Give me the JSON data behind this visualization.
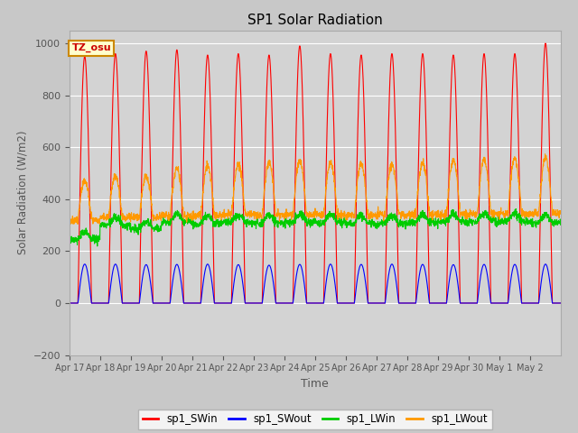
{
  "title": "SP1 Solar Radiation",
  "xlabel": "Time",
  "ylabel": "Solar Radiation (W/m2)",
  "ylim": [
    -200,
    1050
  ],
  "yticks": [
    -200,
    0,
    200,
    400,
    600,
    800,
    1000
  ],
  "fig_bg_color": "#c8c8c8",
  "plot_bg_color": "#d3d3d3",
  "grid_color": "#ffffff",
  "tz_label": "TZ_osu",
  "legend": [
    "sp1_SWin",
    "sp1_SWout",
    "sp1_LWin",
    "sp1_LWout"
  ],
  "colors": {
    "sp1_SWin": "#ff0000",
    "sp1_SWout": "#0000ff",
    "sp1_LWin": "#00cc00",
    "sp1_LWout": "#ff9900"
  },
  "n_days": 16,
  "start_day": 17,
  "sw_peaks": [
    950,
    960,
    970,
    975,
    955,
    960,
    955,
    990,
    960,
    955,
    960,
    960,
    955,
    960,
    960,
    1000
  ],
  "swout_peaks": [
    150,
    150,
    148,
    149,
    150,
    148,
    146,
    149,
    150,
    149,
    150,
    149,
    148,
    149,
    149,
    150
  ],
  "lwin_day_base": [
    245,
    300,
    285,
    310,
    305,
    310,
    308,
    312,
    310,
    305,
    308,
    310,
    312,
    315,
    315,
    310
  ],
  "lwout_day_peak": [
    470,
    490,
    490,
    520,
    530,
    535,
    540,
    545,
    540,
    535,
    535,
    540,
    550,
    555,
    560,
    560
  ],
  "lwout_night_base": [
    320,
    330,
    330,
    335,
    335,
    340,
    338,
    340,
    340,
    338,
    340,
    340,
    342,
    345,
    345,
    345
  ],
  "xtick_labels": [
    "Apr 17",
    "Apr 18",
    "Apr 19",
    "Apr 20",
    "Apr 21",
    "Apr 22",
    "Apr 23",
    "Apr 24",
    "Apr 25",
    "Apr 26",
    "Apr 27",
    "Apr 28",
    "Apr 29",
    "Apr 30",
    "May 1",
    "May 2"
  ]
}
